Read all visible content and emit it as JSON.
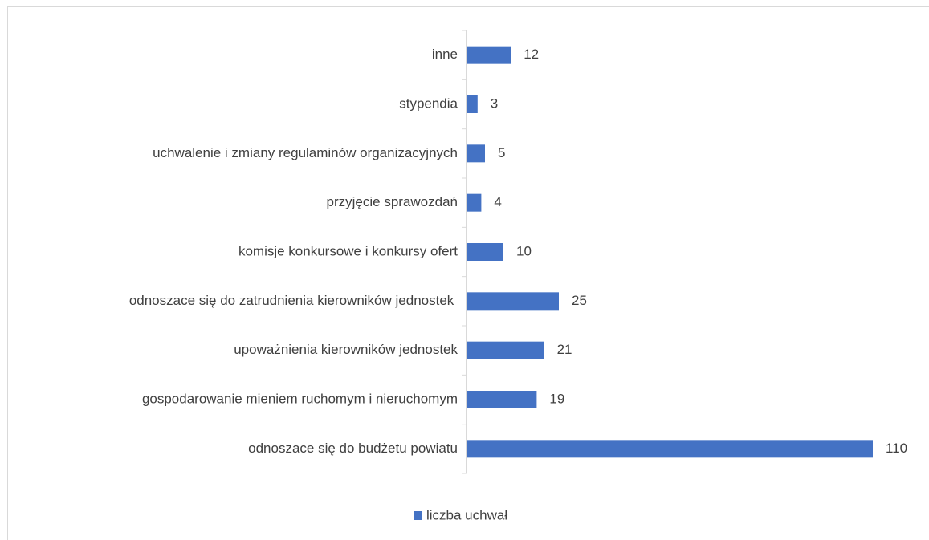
{
  "chart_data": {
    "type": "bar",
    "orientation": "horizontal",
    "categories": [
      "inne",
      "stypendia",
      "uchwalenie i zmiany regulaminów organizacyjnych",
      "przyjęcie sprawozdań",
      "komisje konkursowe i konkursy ofert",
      "odnoszace się do zatrudnienia kierowników jednostek ",
      "upoważnienia kierowników jednostek",
      "gospodarowanie mieniem ruchomym i nieruchomym",
      "odnoszace się do budżetu powiatu"
    ],
    "series": [
      {
        "name": "liczba uchwał",
        "color": "#4472c4",
        "values": [
          12,
          3,
          5,
          4,
          10,
          25,
          21,
          19,
          110
        ]
      }
    ],
    "xlim": [
      0,
      110
    ],
    "legend": "bottom"
  }
}
